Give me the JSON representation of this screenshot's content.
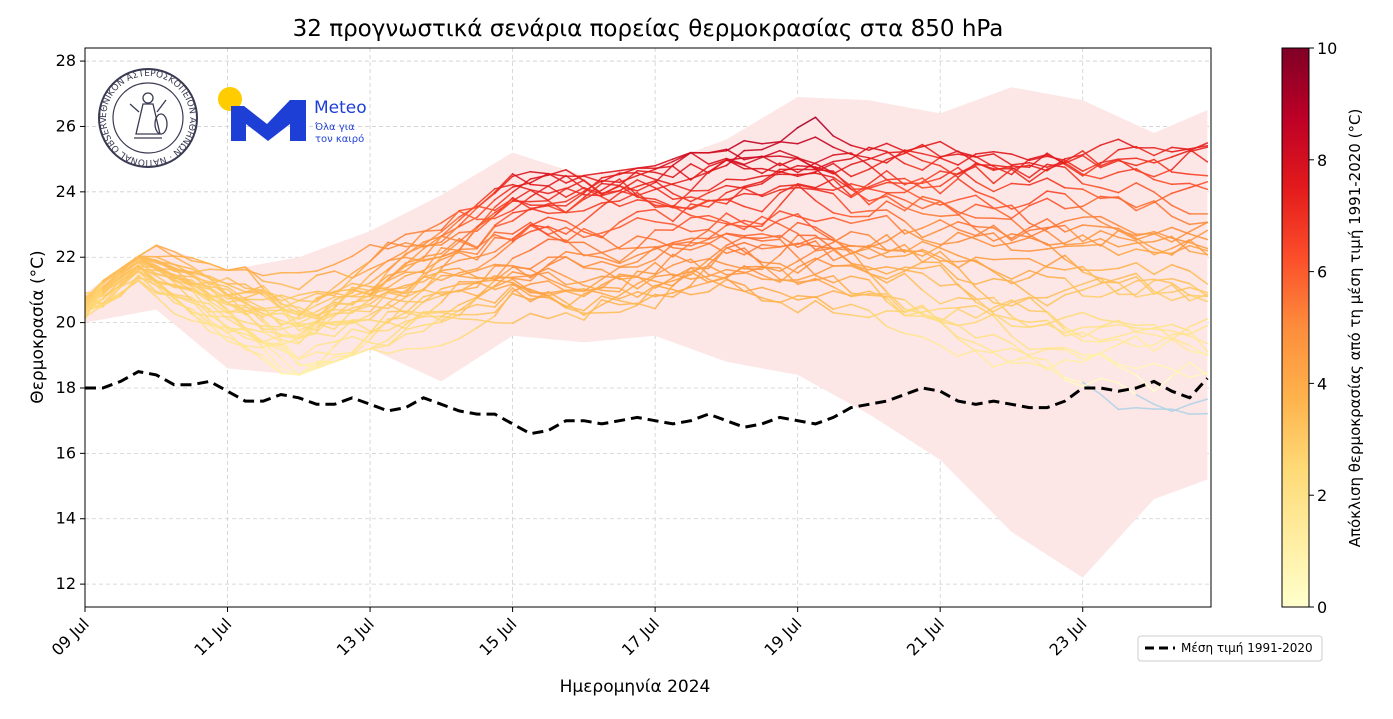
{
  "chart_data": {
    "type": "line",
    "title": "32 προγνωστικά σενάρια πορείας θερμοκρασίας στα 850 hPa",
    "xlabel": "Ημερομηνία 2024",
    "ylabel": "Θερμοκρασία (°C)",
    "xlim": [
      0,
      15.8
    ],
    "ylim": [
      11.3,
      28.4
    ],
    "yticks": [
      12,
      14,
      16,
      18,
      20,
      22,
      24,
      26,
      28
    ],
    "xtick_positions": [
      0,
      2,
      4,
      6,
      8,
      10,
      12,
      14
    ],
    "xtick_labels": [
      "09 Jul",
      "11 Jul",
      "13 Jul",
      "15 Jul",
      "17 Jul",
      "19 Jul",
      "21 Jul",
      "23 Jul"
    ],
    "grid": true,
    "climatology": {
      "name": "Μέση τιμή 1991-2020",
      "x": [
        0,
        0.25,
        0.5,
        0.75,
        1,
        1.25,
        1.5,
        1.75,
        2,
        2.25,
        2.5,
        2.75,
        3,
        3.25,
        3.5,
        3.75,
        4,
        4.25,
        4.5,
        4.75,
        5,
        5.25,
        5.5,
        5.75,
        6,
        6.25,
        6.5,
        6.75,
        7,
        7.25,
        7.5,
        7.75,
        8,
        8.25,
        8.5,
        8.75,
        9,
        9.25,
        9.5,
        9.75,
        10,
        10.25,
        10.5,
        10.75,
        11,
        11.25,
        11.5,
        11.75,
        12,
        12.25,
        12.5,
        12.75,
        13,
        13.25,
        13.5,
        13.75,
        14,
        14.25,
        14.5,
        14.75,
        15,
        15.25,
        15.5,
        15.75
      ],
      "values": [
        18.0,
        18.0,
        18.2,
        18.5,
        18.4,
        18.1,
        18.1,
        18.2,
        17.9,
        17.6,
        17.6,
        17.8,
        17.7,
        17.5,
        17.5,
        17.7,
        17.5,
        17.3,
        17.4,
        17.7,
        17.5,
        17.3,
        17.2,
        17.2,
        16.9,
        16.6,
        16.7,
        17.0,
        17.0,
        16.9,
        17.0,
        17.1,
        17.0,
        16.9,
        17.0,
        17.2,
        17.0,
        16.8,
        16.9,
        17.1,
        17.0,
        16.9,
        17.1,
        17.4,
        17.5,
        17.6,
        17.8,
        18.0,
        17.9,
        17.6,
        17.5,
        17.6,
        17.5,
        17.4,
        17.4,
        17.6,
        18.0,
        18.0,
        17.9,
        18.0,
        18.2,
        17.9,
        17.7,
        18.3
      ]
    },
    "envelope": {
      "x": [
        0,
        1,
        2,
        3,
        4,
        5,
        6,
        7,
        8,
        9,
        10,
        11,
        12,
        13,
        14,
        15,
        15.75
      ],
      "upper": [
        20.9,
        22.4,
        21.6,
        22.0,
        22.8,
        23.9,
        25.2,
        24.5,
        24.8,
        25.6,
        26.9,
        26.8,
        26.4,
        27.2,
        26.8,
        25.8,
        26.5
      ],
      "lower": [
        20.0,
        20.4,
        18.6,
        18.4,
        19.2,
        18.2,
        19.6,
        19.4,
        19.6,
        18.8,
        18.4,
        17.2,
        15.8,
        13.6,
        12.2,
        14.6,
        15.2
      ]
    },
    "ensemble": {
      "count": 32,
      "x_start": 0,
      "x_step": 0.25,
      "points": 64,
      "start_range": [
        20.1,
        20.9
      ],
      "trend_anchors_x": [
        0,
        0.75,
        2,
        3,
        4,
        5,
        6,
        7,
        8,
        9,
        10,
        11,
        12,
        13,
        14,
        15,
        15.75
      ],
      "trend_anchors_y": [
        20.5,
        21.9,
        20.6,
        19.8,
        20.6,
        21.6,
        22.5,
        22.6,
        22.8,
        23.2,
        23.3,
        22.8,
        22.5,
        22.2,
        21.8,
        21.5,
        21.5
      ],
      "spread_anchors_x": [
        0,
        1,
        2,
        3,
        4,
        5,
        6,
        7,
        8,
        9,
        10,
        11,
        12,
        13,
        14,
        15,
        15.75
      ],
      "spread_anchors": [
        0.35,
        0.5,
        0.8,
        1.0,
        1.1,
        1.3,
        1.4,
        1.5,
        1.6,
        1.7,
        2.0,
        2.3,
        2.7,
        3.0,
        3.3,
        3.4,
        3.4
      ],
      "seed": 7
    },
    "colorbar": {
      "label": "Απόκλιση θερμοκρασίας από τη μέση τιμή 1991-2020 (°C)",
      "min": 0,
      "max": 10,
      "ticks": [
        0,
        2,
        4,
        6,
        8,
        10
      ],
      "colors": [
        "#ffffcc",
        "#ffeda0",
        "#fed976",
        "#feb24c",
        "#fd8d3c",
        "#fc4e2a",
        "#e31a1c",
        "#bd0026",
        "#800026"
      ],
      "below_color": "#aed3e6"
    },
    "legend": {
      "label": "Μέση τιμή 1991-2020",
      "position": "bottom-right outside"
    },
    "logos": {
      "observatory_text": "ΕΘΝΙΚΟΝ ΑΣΤΕΡΟΣΚΟΠΕΙΟΝ ΑΘΗΝΩΝ · NATIONAL OBSERVATORY ATHENS",
      "meteo_name": "Meteo",
      "meteo_tagline_1": "Όλα για",
      "meteo_tagline_2": "τον καιρό",
      "meteo_blue": "#1e3fd6",
      "meteo_yellow": "#ffcc00"
    },
    "envelope_color": "#fde6e6"
  }
}
